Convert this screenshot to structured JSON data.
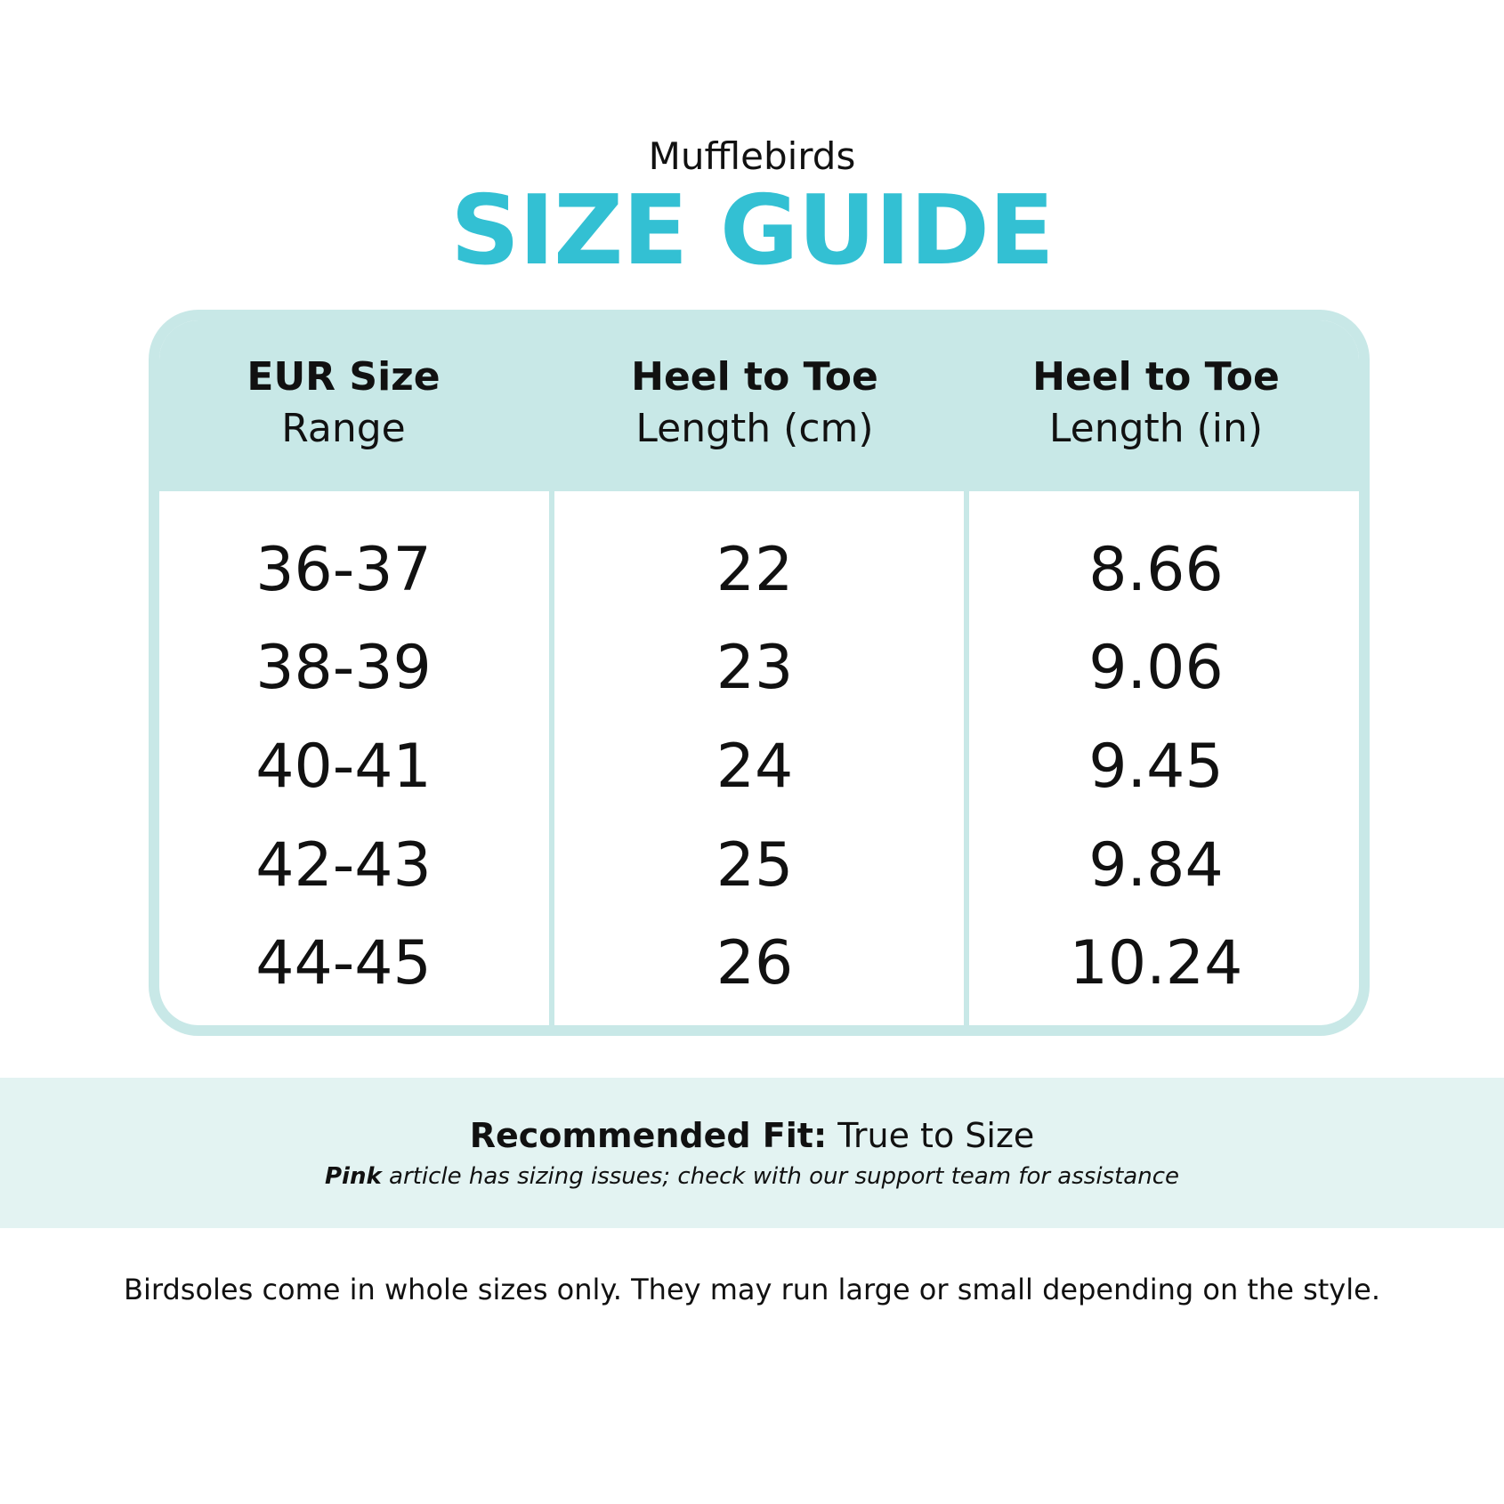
{
  "header": {
    "brand": "Mufflebirds",
    "title": "SIZE GUIDE",
    "accent_color": "#33c0d3"
  },
  "table": {
    "columns": [
      {
        "line1": "EUR Size",
        "line2": "Range"
      },
      {
        "line1": "Heel to Toe",
        "line2": "Length (cm)"
      },
      {
        "line1": "Heel to Toe",
        "line2": "Length (in)"
      }
    ],
    "rows": [
      [
        "36-37",
        "22",
        "8.66"
      ],
      [
        "38-39",
        "23",
        "9.06"
      ],
      [
        "40-41",
        "24",
        "9.45"
      ],
      [
        "42-43",
        "25",
        "9.84"
      ],
      [
        "44-45",
        "26",
        "10.24"
      ]
    ]
  },
  "fit": {
    "label": "Recommended Fit:",
    "value": "True to Size",
    "note_bold": "Pink",
    "note_rest": "article has sizing issues; check with our support team for assistance"
  },
  "footer": "Birdsoles come in whole sizes only. They may run large or small depending on the style."
}
